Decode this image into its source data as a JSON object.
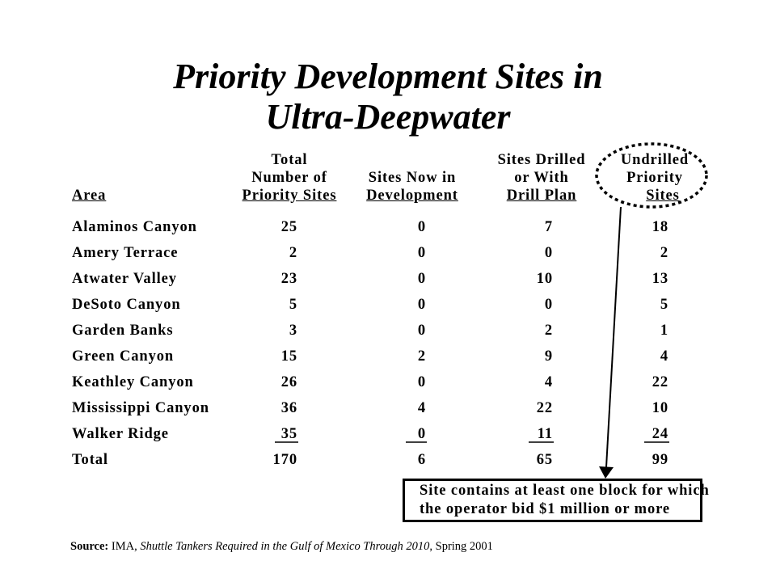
{
  "title": {
    "line1": "Priority Development Sites in",
    "line2": "Ultra-Deepwater"
  },
  "headers": {
    "area": "Area",
    "total": [
      "Total",
      "Number of",
      "Priority Sites"
    ],
    "development": [
      "Sites Now in",
      "Development"
    ],
    "drilled": [
      "Sites Drilled",
      "or With",
      "Drill Plan"
    ],
    "undrilled": [
      "Undrilled",
      "Priority",
      "Sites"
    ]
  },
  "rows": [
    {
      "area": "Alaminos Canyon",
      "total": "25",
      "development": "0",
      "drilled": "7",
      "undrilled": "18"
    },
    {
      "area": "Amery Terrace",
      "total": "2",
      "development": "0",
      "drilled": "0",
      "undrilled": "2"
    },
    {
      "area": "Atwater Valley",
      "total": "23",
      "development": "0",
      "drilled": "10",
      "undrilled": "13"
    },
    {
      "area": "DeSoto Canyon",
      "total": "5",
      "development": "0",
      "drilled": "0",
      "undrilled": "5"
    },
    {
      "area": "Garden Banks",
      "total": "3",
      "development": "0",
      "drilled": "2",
      "undrilled": "1"
    },
    {
      "area": "Green Canyon",
      "total": "15",
      "development": "2",
      "drilled": "9",
      "undrilled": "4"
    },
    {
      "area": "Keathley Canyon",
      "total": "26",
      "development": "0",
      "drilled": "4",
      "undrilled": "22"
    },
    {
      "area": "Mississippi Canyon",
      "total": "36",
      "development": "4",
      "drilled": "22",
      "undrilled": "10"
    },
    {
      "area": "Walker Ridge",
      "total": "35",
      "development": "0",
      "drilled": "11",
      "undrilled": "24"
    }
  ],
  "total_row": {
    "area": "Total",
    "total": "170",
    "development": "6",
    "drilled": "65",
    "undrilled": "99"
  },
  "callout": {
    "line1": "Site contains at least one block for which",
    "line2": "the operator bid $1 million or more"
  },
  "source": {
    "label": "Source:",
    "publisher": "IMA,",
    "publication": "Shuttle Tankers Required in the Gulf of Mexico Through 2010",
    "date": ", Spring 2001"
  }
}
